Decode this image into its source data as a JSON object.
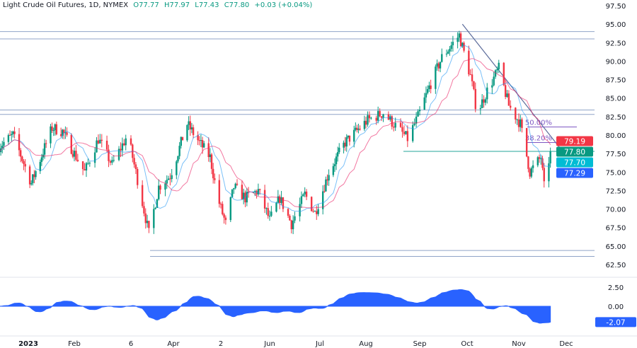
{
  "header": {
    "symbol": "Light Crude Oil Futures, 1D, NYMEX",
    "open": "O77.77",
    "high": "H77.97",
    "low": "L77.43",
    "close": "C77.80",
    "change": "+0.03 (+0.04%)"
  },
  "colors": {
    "up": "#089981",
    "down": "#f23645",
    "ma_fast": "#2196f3",
    "ma_slow": "#e91e63",
    "oscillator": "#2962ff",
    "trendline": "#5b6b9a",
    "fib": "#7e57c2",
    "level": "#90a4c8"
  },
  "chart_data": [
    {
      "type": "candlestick",
      "title": "Light Crude Oil Futures, 1D, NYMEX",
      "ylim": [
        61.5,
        98.5
      ],
      "y_ticks": [
        "97.50",
        "95.00",
        "92.50",
        "90.00",
        "87.50",
        "85.00",
        "82.50",
        "80.00",
        "77.50",
        "75.00",
        "72.50",
        "70.00",
        "67.50",
        "65.00",
        "62.50"
      ],
      "x_ticks": [
        "2023",
        "Feb",
        "6",
        "Apr",
        "2",
        "Jun",
        "Jul",
        "Aug",
        "Sep",
        "Oct",
        "Nov",
        "Dec"
      ],
      "close_path": {
        "x": [
          "2022-12-13",
          "2022-12-22",
          "2023-01-03",
          "2023-01-17",
          "2023-01-24",
          "2023-02-01",
          "2023-02-07",
          "2023-02-15",
          "2023-02-23",
          "2023-03-04",
          "2023-03-10",
          "2023-03-17",
          "2023-03-23",
          "2023-03-30",
          "2023-04-10",
          "2023-04-18",
          "2023-04-25",
          "2023-04-30",
          "2023-05-05",
          "2023-05-10",
          "2023-05-17",
          "2023-05-25",
          "2023-06-01",
          "2023-06-07",
          "2023-06-14",
          "2023-06-22",
          "2023-06-28",
          "2023-07-07",
          "2023-07-18",
          "2023-08-02",
          "2023-08-11",
          "2023-08-19",
          "2023-08-25",
          "2023-08-31",
          "2023-09-07",
          "2023-09-15",
          "2023-09-26",
          "2023-10-03",
          "2023-10-07",
          "2023-10-13",
          "2023-10-20",
          "2023-10-26",
          "2023-11-02",
          "2023-11-08",
          "2023-11-15",
          "2023-11-17",
          "2023-11-21"
        ],
        "y": [
          78.5,
          80,
          73.5,
          81,
          80.5,
          77.5,
          75,
          79.5,
          76,
          80,
          74,
          66.7,
          73,
          74.5,
          81.5,
          79,
          77,
          71.5,
          68,
          73,
          71.5,
          72.5,
          68.5,
          71.5,
          68,
          72,
          69.5,
          75,
          79,
          82,
          83,
          81,
          79.5,
          82.5,
          86.5,
          90.5,
          93.5,
          88,
          83,
          86,
          89,
          84,
          81.5,
          75,
          77,
          73,
          77.8
        ]
      },
      "horizontal_levels": [
        94.0,
        93.0,
        83.4,
        82.8,
        64.4,
        63.6,
        77.8
      ],
      "trendline": {
        "from": [
          "2023-09-28",
          95.0
        ],
        "to": [
          "2023-11-28",
          78.0
        ]
      },
      "fib_levels": [
        {
          "label": "50.00%",
          "value": 81.1
        },
        {
          "label": "38.20%",
          "value": 79.0
        }
      ],
      "price_labels": [
        {
          "text": "79.19",
          "color": "#f23645"
        },
        {
          "text": "77.80",
          "color": "#089981"
        },
        {
          "text": "77.70",
          "color": "#00bcd4"
        },
        {
          "text": "77.29",
          "color": "#2962ff"
        }
      ]
    },
    {
      "type": "area",
      "ylim": [
        -3.0,
        3.2
      ],
      "y_ticks": [
        "2.50",
        "0.00"
      ],
      "last_value": "-2.07",
      "last_color": "#2962ff"
    }
  ]
}
